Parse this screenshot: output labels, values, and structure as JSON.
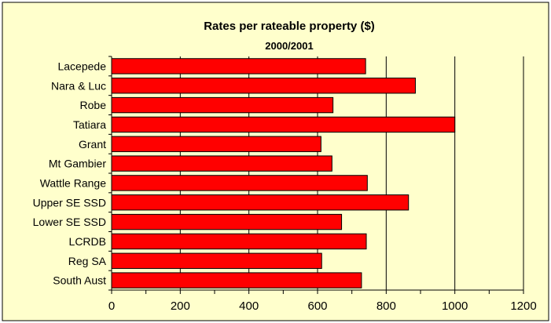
{
  "chart_data": {
    "type": "bar",
    "orientation": "horizontal",
    "title": "Rates per rateable property ($)",
    "subtitle": "2000/2001",
    "categories": [
      "Lacepede",
      "Nara & Luc",
      "Robe",
      "Tatiara",
      "Grant",
      "Mt Gambier",
      "Wattle Range",
      "Upper SE SSD",
      "Lower SE SSD",
      "LCRDB",
      "Reg SA",
      "South Aust"
    ],
    "values": [
      740,
      885,
      645,
      1000,
      610,
      642,
      745,
      865,
      670,
      742,
      612,
      728
    ],
    "xlim": [
      0,
      1200
    ],
    "xticks": [
      "0",
      "200",
      "400",
      "600",
      "800",
      "1000",
      "1200"
    ],
    "xlabel": "",
    "ylabel": "",
    "grid": "vertical",
    "colors": {
      "bar_fill": "#ff0000",
      "bar_stroke": "#000000",
      "chart_area_bg": "#ffffcc",
      "frame_border": "#000000"
    }
  }
}
